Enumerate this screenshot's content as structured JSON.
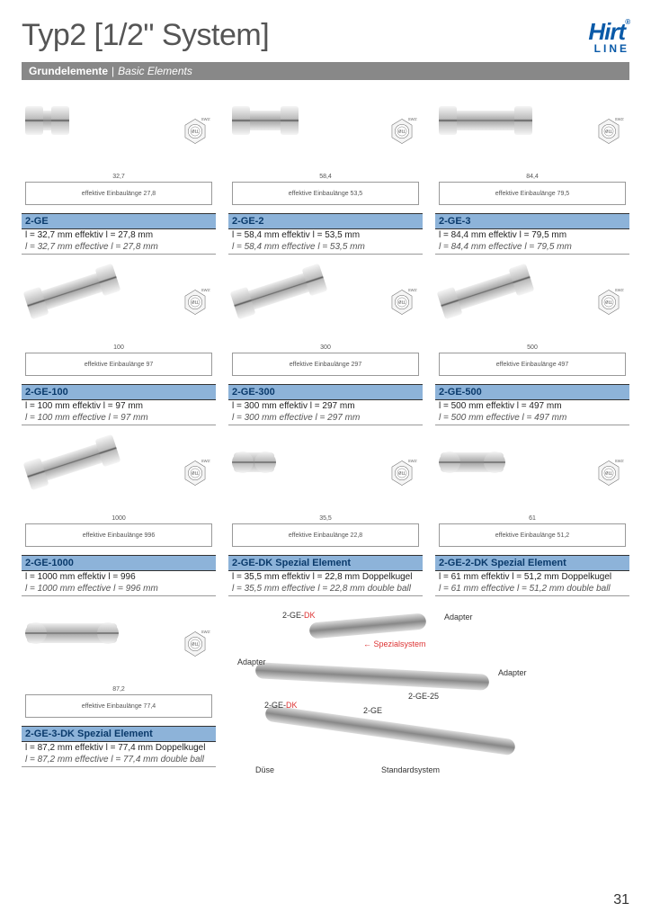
{
  "page_number": "31",
  "title": "Typ2 [1/2\" System]",
  "logo": {
    "brand": "Hirt",
    "sub": "LINE"
  },
  "section": {
    "de": "Grundelemente",
    "en": "Basic Elements"
  },
  "items": [
    {
      "code": "2-GE",
      "dim_total": "32,7",
      "eff_len": "27,8",
      "de": "l = 32,7 mm effektiv l = 27,8 mm",
      "en": "l = 32,7 mm effective l = 27,8 mm",
      "conn_class": "short"
    },
    {
      "code": "2-GE-2",
      "dim_total": "58,4",
      "eff_len": "53,5",
      "de": "l = 58,4 mm effektiv l = 53,5 mm",
      "en": "l = 58,4 mm effective l = 53,5 mm",
      "conn_class": "med"
    },
    {
      "code": "2-GE-3",
      "dim_total": "84,4",
      "eff_len": "79,5",
      "de": "l = 84,4 mm effektiv l = 79,5 mm",
      "en": "l = 84,4 mm effective l = 79,5 mm",
      "conn_class": "long"
    },
    {
      "code": "2-GE-100",
      "dim_total": "100",
      "eff_len": "97",
      "de": "l = 100 mm effektiv l = 97 mm",
      "en": "l = 100 mm effective l = 97 mm",
      "conn_class": "long tilt"
    },
    {
      "code": "2-GE-300",
      "dim_total": "300",
      "eff_len": "297",
      "de": "l = 300 mm effektiv l = 297 mm",
      "en": "l = 300 mm effective l = 297 mm",
      "conn_class": "long tilt"
    },
    {
      "code": "2-GE-500",
      "dim_total": "500",
      "eff_len": "497",
      "de": "l = 500 mm effektiv l = 497 mm",
      "en": "l = 500 mm effective l = 497 mm",
      "conn_class": "long tilt"
    },
    {
      "code": "2-GE-1000",
      "dim_total": "1000",
      "eff_len": "996",
      "de": "l = 1000 mm effektiv l = 996",
      "en": "l = 1000 mm effective l = 996 mm",
      "conn_class": "long tilt"
    },
    {
      "code": "2-GE-DK Spezial Element",
      "dim_total": "35,5",
      "eff_len": "22,8",
      "de": "l = 35,5 mm effektiv l = 22,8 mm Doppelkugel",
      "en": "l = 35,5 mm effective l = 22,8 mm double ball",
      "conn_class": "short ball"
    },
    {
      "code": "2-GE-2-DK Spezial Element",
      "dim_total": "61",
      "eff_len": "51,2",
      "de": "l = 61 mm effektiv l = 51,2 mm Doppelkugel",
      "en": "l = 61 mm effective l = 51,2 mm double ball",
      "conn_class": "med ball"
    },
    {
      "code": "2-GE-3-DK Spezial Element",
      "dim_total": "87,2",
      "eff_len": "77,4",
      "de": "l = 87,2 mm effektiv l = 77,4 mm Doppelkugel",
      "en": "l = 87,2 mm effective l = 77,4 mm double ball",
      "conn_class": "long ball"
    }
  ],
  "dim_prefix": "effektive Einbaulänge",
  "nut_label": "Ø11",
  "nut_sw": "SW27",
  "diagram_labels": {
    "dk1": "2-GE-DK",
    "adapter": "Adapter",
    "spezial": "Spezialsystem",
    "ge25": "2-GE-25",
    "ge": "2-GE",
    "duse": "Düse",
    "standard": "Standardsystem"
  },
  "colors": {
    "accent": "#0a5aa8",
    "code_bar": "#8db3d9",
    "code_text": "#0a3a6b",
    "red": "#d33",
    "section_bg": "#888888"
  }
}
